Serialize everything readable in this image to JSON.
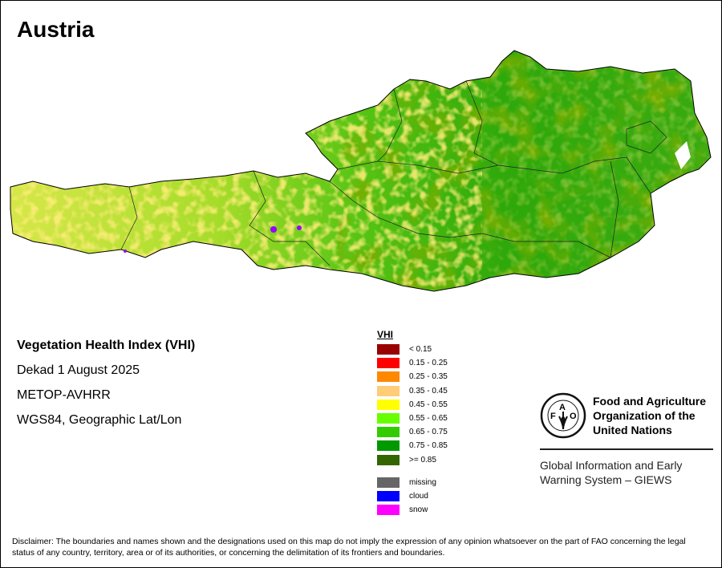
{
  "title": "Austria",
  "info": {
    "index_name": "Vegetation Health Index (VHI)",
    "period": "Dekad 1 August 2025",
    "sensor": "METOP-AVHRR",
    "projection": "WGS84, Geographic Lat/Lon"
  },
  "legend": {
    "title": "VHI",
    "classes": [
      {
        "label": "< 0.15",
        "color": "#990000"
      },
      {
        "label": "0.15 - 0.25",
        "color": "#ff0000"
      },
      {
        "label": "0.25 - 0.35",
        "color": "#ff8800"
      },
      {
        "label": "0.35 - 0.45",
        "color": "#ffcc77"
      },
      {
        "label": "0.45 - 0.55",
        "color": "#ffff00"
      },
      {
        "label": "0.55 - 0.65",
        "color": "#66ff00"
      },
      {
        "label": "0.65 - 0.75",
        "color": "#33cc00"
      },
      {
        "label": "0.75 - 0.85",
        "color": "#009900"
      },
      {
        "label": ">= 0.85",
        "color": "#336600"
      }
    ],
    "special": [
      {
        "label": "missing",
        "color": "#666666"
      },
      {
        "label": "cloud",
        "color": "#0000ff"
      },
      {
        "label": "snow",
        "color": "#ff00ff"
      }
    ]
  },
  "logo": {
    "org_name_line1": "Food and Agriculture",
    "org_name_line2": "Organization of the",
    "org_name_line3": "United Nations",
    "emblem_text": "FAO FIAT PANIS",
    "system_line1": "Global Information and Early",
    "system_line2": "Warning System – GIEWS"
  },
  "disclaimer": "Disclaimer: The boundaries and names shown and the designations used on this map do not imply the expression of any opinion whatsoever on the part of FAO concerning the legal status of any country, territory, area or of its authorities, or concerning the delimitation of its frontiers and boundaries."
}
